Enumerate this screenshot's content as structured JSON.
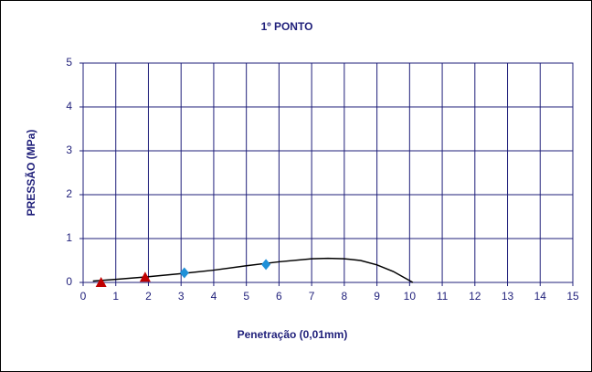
{
  "chart_data": {
    "type": "scatter",
    "title": "1º PONTO",
    "x_label": "Penetração (0,01mm)",
    "y_label": "PRESSÃO (MPa)",
    "xlim": [
      0,
      15
    ],
    "ylim": [
      0,
      5
    ],
    "xticks": [
      0,
      1,
      2,
      3,
      4,
      5,
      6,
      7,
      8,
      9,
      10,
      11,
      12,
      13,
      14,
      15
    ],
    "yticks": [
      0,
      1,
      2,
      3,
      4,
      5
    ],
    "grid": true,
    "grid_color": "#1f1f7a",
    "series": [
      {
        "marker": "line",
        "color": "#000000",
        "x": [
          0.3,
          1,
          2,
          3,
          4,
          5,
          6,
          7,
          7.5,
          8,
          8.5,
          9,
          9.5,
          10.1
        ],
        "values": [
          0.03,
          0.07,
          0.13,
          0.2,
          0.28,
          0.38,
          0.47,
          0.54,
          0.55,
          0.54,
          0.5,
          0.4,
          0.25,
          0.0
        ]
      },
      {
        "marker": "triangle",
        "color": "#c00000",
        "x": [
          0.55,
          1.9
        ],
        "values": [
          0.0,
          0.12
        ]
      },
      {
        "marker": "diamond",
        "color": "#1e90d8",
        "x": [
          3.1,
          5.6
        ],
        "values": [
          0.22,
          0.41
        ]
      }
    ]
  }
}
